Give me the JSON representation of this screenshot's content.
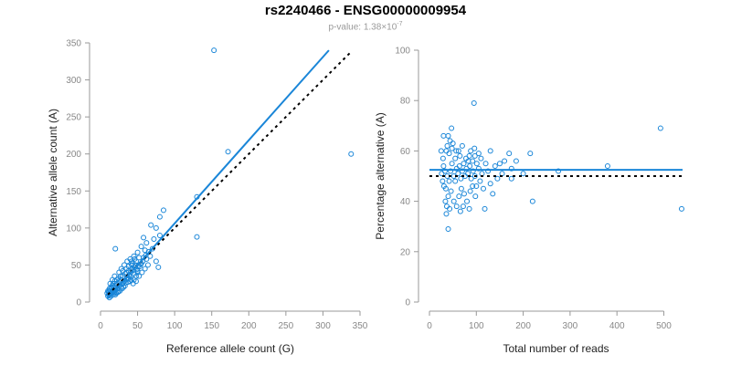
{
  "title": "rs2240466 - ENSG00000009954",
  "pvalue": {
    "prefix": "p-value: ",
    "mantissa": "1.38",
    "times": "×",
    "base": "10",
    "exponent": "-7"
  },
  "colors": {
    "points": "#1a86d8",
    "fit_line": "#1a86d8",
    "expected_line": "#000000",
    "axis": "#999999",
    "tick_text": "#888888"
  },
  "chart_data": [
    {
      "type": "scatter",
      "title": "",
      "xlabel": "Reference allele count (G)",
      "ylabel": "Alternative allele count (A)",
      "xlim": [
        0,
        350
      ],
      "ylim": [
        0,
        350
      ],
      "xticks": [
        0,
        50,
        100,
        150,
        200,
        250,
        300,
        350
      ],
      "yticks": [
        0,
        50,
        100,
        150,
        200,
        250,
        300,
        350
      ],
      "fit_line": {
        "style": "solid",
        "from": [
          10,
          5
        ],
        "to": [
          308,
          340
        ]
      },
      "expected_line": {
        "style": "dotted",
        "from": [
          10,
          10
        ],
        "to": [
          338,
          338
        ]
      },
      "series": [
        {
          "points": [
            [
              153,
              340
            ],
            [
              172,
              203
            ],
            [
              338,
              200
            ],
            [
              130,
              142
            ],
            [
              130,
              88
            ],
            [
              85,
              124
            ],
            [
              80,
              115
            ],
            [
              20,
              72
            ],
            [
              75,
              100
            ],
            [
              68,
              104
            ],
            [
              80,
              90
            ],
            [
              72,
              85
            ],
            [
              62,
              80
            ],
            [
              58,
              87
            ],
            [
              55,
              75
            ],
            [
              60,
              70
            ],
            [
              50,
              67
            ],
            [
              45,
              62
            ],
            [
              40,
              58
            ],
            [
              52,
              60
            ],
            [
              48,
              55
            ],
            [
              43,
              52
            ],
            [
              38,
              48
            ],
            [
              35,
              45
            ],
            [
              42,
              45
            ],
            [
              55,
              52
            ],
            [
              58,
              60
            ],
            [
              65,
              68
            ],
            [
              62,
              58
            ],
            [
              75,
              55
            ],
            [
              78,
              47
            ],
            [
              60,
              45
            ],
            [
              50,
              40
            ],
            [
              45,
              38
            ],
            [
              40,
              35
            ],
            [
              35,
              40
            ],
            [
              30,
              35
            ],
            [
              28,
              30
            ],
            [
              25,
              28
            ],
            [
              22,
              25
            ],
            [
              20,
              22
            ],
            [
              18,
              20
            ],
            [
              15,
              18
            ],
            [
              13,
              15
            ],
            [
              12,
              12
            ],
            [
              11,
              10
            ],
            [
              15,
              12
            ],
            [
              18,
              15
            ],
            [
              20,
              18
            ],
            [
              25,
              22
            ],
            [
              28,
              20
            ],
            [
              30,
              25
            ],
            [
              32,
              28
            ],
            [
              35,
              30
            ],
            [
              38,
              32
            ],
            [
              40,
              28
            ],
            [
              45,
              30
            ],
            [
              48,
              35
            ],
            [
              50,
              42
            ],
            [
              53,
              48
            ],
            [
              47,
              50
            ],
            [
              42,
              55
            ],
            [
              38,
              42
            ],
            [
              33,
              38
            ],
            [
              30,
              42
            ],
            [
              27,
              35
            ],
            [
              24,
              32
            ],
            [
              22,
              30
            ],
            [
              19,
              28
            ],
            [
              17,
              25
            ],
            [
              16,
              22
            ],
            [
              14,
              20
            ],
            [
              12,
              18
            ],
            [
              10,
              15
            ],
            [
              13,
              10
            ],
            [
              16,
              12
            ],
            [
              19,
              13
            ],
            [
              23,
              18
            ],
            [
              26,
              23
            ],
            [
              29,
              24
            ],
            [
              31,
              20
            ],
            [
              34,
              26
            ],
            [
              36,
              33
            ],
            [
              39,
              37
            ],
            [
              41,
              40
            ],
            [
              44,
              43
            ],
            [
              46,
              47
            ],
            [
              49,
              44
            ],
            [
              51,
              49
            ],
            [
              54,
              51
            ],
            [
              57,
              55
            ],
            [
              61,
              63
            ],
            [
              64,
              50
            ],
            [
              67,
              62
            ],
            [
              70,
              72
            ],
            [
              56,
              40
            ],
            [
              52,
              35
            ],
            [
              48,
              28
            ],
            [
              44,
              25
            ],
            [
              41,
              30
            ],
            [
              37,
              27
            ],
            [
              33,
              22
            ],
            [
              29,
              18
            ],
            [
              26,
              15
            ],
            [
              23,
              13
            ],
            [
              21,
              12
            ],
            [
              17,
              10
            ],
            [
              14,
              8
            ],
            [
              12,
              6
            ],
            [
              11,
              14
            ],
            [
              13,
              25
            ],
            [
              16,
              30
            ],
            [
              19,
              35
            ],
            [
              25,
              40
            ],
            [
              28,
              45
            ],
            [
              32,
              50
            ],
            [
              36,
              55
            ],
            [
              42,
              50
            ],
            [
              46,
              58
            ],
            [
              9,
              12
            ],
            [
              10,
              8
            ],
            [
              20,
              10
            ],
            [
              24,
              14
            ]
          ]
        }
      ]
    },
    {
      "type": "scatter",
      "title": "",
      "xlabel": "Total number of reads",
      "ylabel": "Percentage alternative (A)",
      "xlim": [
        0,
        540
      ],
      "ylim": [
        0,
        100
      ],
      "xticks": [
        0,
        100,
        200,
        300,
        400,
        500
      ],
      "yticks": [
        0,
        20,
        40,
        60,
        80,
        100
      ],
      "fit_line": {
        "style": "solid",
        "from": [
          0,
          52.5
        ],
        "to": [
          540,
          52.5
        ]
      },
      "expected_line": {
        "style": "dotted",
        "from": [
          0,
          50
        ],
        "to": [
          540,
          50
        ]
      },
      "series": [
        {
          "points": [
            [
              95,
              79
            ],
            [
              493,
              69
            ],
            [
              538,
              37
            ],
            [
              40,
              29
            ],
            [
              36,
              35
            ],
            [
              47,
              69
            ],
            [
              30,
              66
            ],
            [
              40,
              66
            ],
            [
              25,
              60
            ],
            [
              36,
              60
            ],
            [
              42,
              59
            ],
            [
              50,
              63
            ],
            [
              57,
              60
            ],
            [
              62,
              60
            ],
            [
              70,
              62
            ],
            [
              78,
              57
            ],
            [
              85,
              58
            ],
            [
              92,
              56
            ],
            [
              97,
              58
            ],
            [
              105,
              59
            ],
            [
              110,
              57
            ],
            [
              120,
              55
            ],
            [
              125,
              52
            ],
            [
              130,
              60
            ],
            [
              150,
              55
            ],
            [
              160,
              56
            ],
            [
              170,
              59
            ],
            [
              185,
              56
            ],
            [
              215,
              59
            ],
            [
              30,
              54
            ],
            [
              33,
              52
            ],
            [
              38,
              50
            ],
            [
              42,
              48
            ],
            [
              45,
              52
            ],
            [
              48,
              55
            ],
            [
              52,
              50
            ],
            [
              55,
              48
            ],
            [
              58,
              53
            ],
            [
              61,
              51
            ],
            [
              64,
              54
            ],
            [
              67,
              49
            ],
            [
              70,
              52
            ],
            [
              73,
              55
            ],
            [
              76,
              50
            ],
            [
              79,
              53
            ],
            [
              82,
              51
            ],
            [
              86,
              54
            ],
            [
              89,
              49
            ],
            [
              93,
              52
            ],
            [
              97,
              50
            ],
            [
              101,
              55
            ],
            [
              105,
              53
            ],
            [
              35,
              45
            ],
            [
              40,
              42
            ],
            [
              46,
              44
            ],
            [
              52,
              40
            ],
            [
              58,
              38
            ],
            [
              63,
              42
            ],
            [
              68,
              45
            ],
            [
              74,
              43
            ],
            [
              80,
              40
            ],
            [
              87,
              44
            ],
            [
              92,
              46
            ],
            [
              98,
              42
            ],
            [
              108,
              48
            ],
            [
              115,
              45
            ],
            [
              135,
              43
            ],
            [
              145,
              49
            ],
            [
              28,
              48
            ],
            [
              31,
              46
            ],
            [
              34,
              40
            ],
            [
              37,
              38
            ],
            [
              43,
              37
            ],
            [
              66,
              36
            ],
            [
              72,
              38
            ],
            [
              85,
              37
            ],
            [
              118,
              37
            ],
            [
              220,
              40
            ],
            [
              275,
              52
            ],
            [
              380,
              54
            ],
            [
              175,
              53
            ],
            [
              175,
              49
            ],
            [
              200,
              51
            ],
            [
              140,
              54
            ],
            [
              155,
              51
            ],
            [
              130,
              47
            ],
            [
              112,
              51
            ],
            [
              88,
              60
            ],
            [
              65,
              58
            ],
            [
              55,
              57
            ],
            [
              48,
              61
            ],
            [
              44,
              64
            ],
            [
              38,
              62
            ],
            [
              29,
              57
            ],
            [
              26,
              51
            ],
            [
              100,
              46
            ],
            [
              96,
              61
            ],
            [
              83,
              56
            ]
          ]
        }
      ]
    }
  ]
}
